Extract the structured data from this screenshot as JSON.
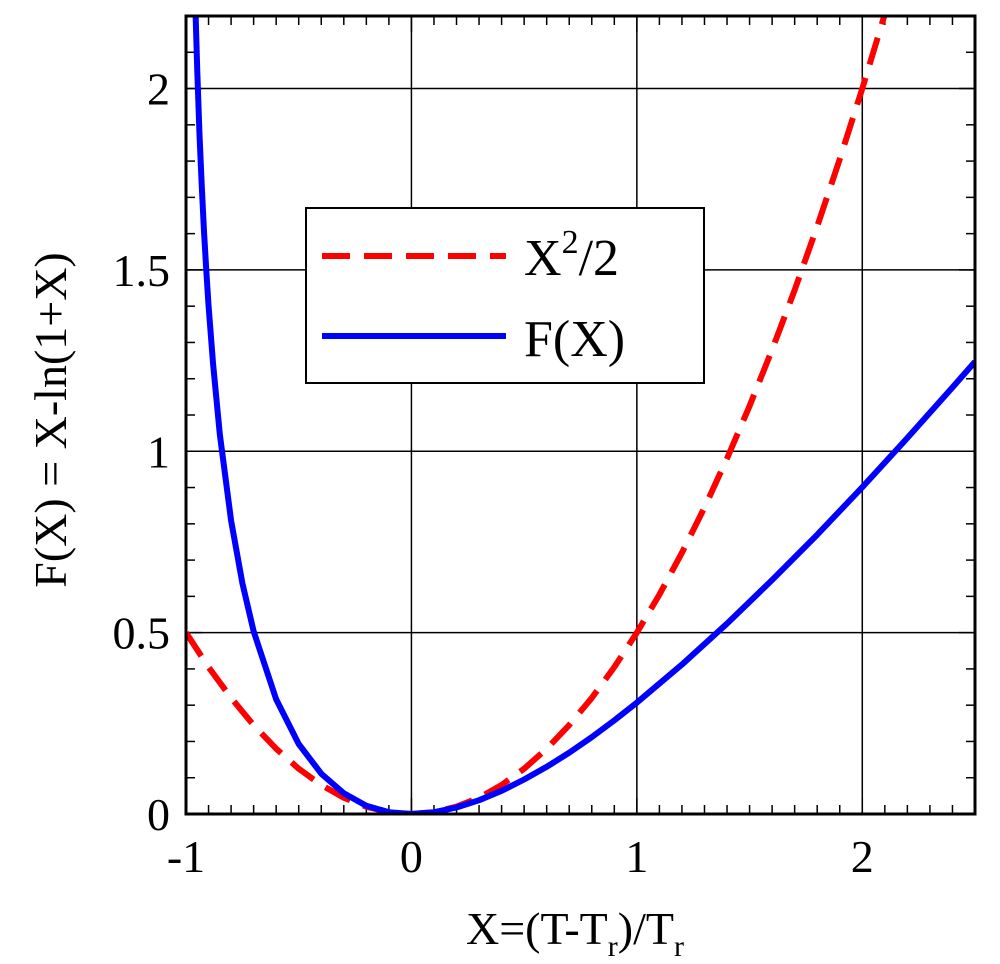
{
  "chart_data": {
    "type": "line",
    "title": "",
    "xlabel": {
      "main": "X=(T-T",
      "sub1": "r",
      "mid": ")/T",
      "sub2": "r"
    },
    "ylabel": "F(X) = X-ln(1+X)",
    "xlim": [
      -1,
      2.5
    ],
    "ylim": [
      0,
      2.2
    ],
    "xticks": [
      -1,
      0,
      1,
      2
    ],
    "xtick_labels": [
      "-1",
      "0",
      "1",
      "2"
    ],
    "yticks": [
      0,
      0.5,
      1,
      1.5,
      2
    ],
    "ytick_labels": [
      "0",
      "0.5",
      "1",
      "1.5",
      "2"
    ],
    "x_minor_step": 0.1,
    "y_minor_step": 0.1,
    "grid": true,
    "legend_position": "upper-center",
    "series": [
      {
        "name": "X^2/2",
        "label_base": "X",
        "label_sup": "2",
        "label_tail": "/2",
        "color": "#ff0000",
        "style": "dashed",
        "x": [
          -1.0,
          -0.9,
          -0.8,
          -0.7,
          -0.6,
          -0.5,
          -0.4,
          -0.3,
          -0.2,
          -0.1,
          0.0,
          0.1,
          0.2,
          0.3,
          0.4,
          0.5,
          0.6,
          0.7,
          0.8,
          0.9,
          1.0,
          1.1,
          1.2,
          1.3,
          1.4,
          1.5,
          1.6,
          1.7,
          1.8,
          1.9,
          2.0,
          2.1
        ],
        "y": [
          0.5,
          0.405,
          0.32,
          0.245,
          0.18,
          0.125,
          0.08,
          0.045,
          0.02,
          0.005,
          0.0,
          0.005,
          0.02,
          0.045,
          0.08,
          0.125,
          0.18,
          0.245,
          0.32,
          0.405,
          0.5,
          0.605,
          0.72,
          0.845,
          0.98,
          1.125,
          1.28,
          1.445,
          1.62,
          1.805,
          2.0,
          2.205
        ]
      },
      {
        "name": "F(X)",
        "color": "#0000ff",
        "style": "solid",
        "x": [
          -0.96,
          -0.95,
          -0.94,
          -0.93,
          -0.92,
          -0.91,
          -0.9,
          -0.88,
          -0.85,
          -0.8,
          -0.75,
          -0.7,
          -0.6,
          -0.5,
          -0.4,
          -0.3,
          -0.2,
          -0.1,
          0.0,
          0.1,
          0.2,
          0.3,
          0.4,
          0.5,
          0.6,
          0.7,
          0.8,
          0.9,
          1.0,
          1.2,
          1.4,
          1.6,
          1.8,
          2.0,
          2.2,
          2.4,
          2.5
        ],
        "y": [
          2.259,
          2.046,
          1.873,
          1.729,
          1.606,
          1.498,
          1.403,
          1.24,
          1.047,
          0.809,
          0.636,
          0.504,
          0.316,
          0.193,
          0.111,
          0.057,
          0.023,
          0.005,
          0.0,
          0.005,
          0.018,
          0.038,
          0.064,
          0.095,
          0.13,
          0.169,
          0.212,
          0.258,
          0.307,
          0.412,
          0.525,
          0.645,
          0.77,
          0.901,
          1.037,
          1.176,
          1.247
        ]
      }
    ]
  }
}
